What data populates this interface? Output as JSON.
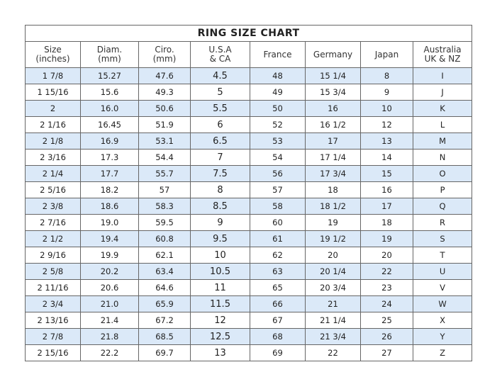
{
  "title": "RING SIZE CHART",
  "headers": [
    [
      "Size",
      "(inches)"
    ],
    [
      "Diam.",
      "(mm)"
    ],
    [
      "Ciro.",
      "(mm)"
    ],
    [
      "U.S.A",
      "& CA"
    ],
    [
      "France",
      ""
    ],
    [
      "Germany",
      ""
    ],
    [
      "Japan",
      ""
    ],
    [
      "Australia",
      "UK & NZ"
    ]
  ],
  "stripe_color": "#dbe9f8",
  "rows": [
    [
      "1 7/8",
      "15.27",
      "47.6",
      "4.5",
      "48",
      "15 1/4",
      "8",
      "I"
    ],
    [
      "1 15/16",
      "15.6",
      "49.3",
      "5",
      "49",
      "15 3/4",
      "9",
      "J"
    ],
    [
      "2",
      "16.0",
      "50.6",
      "5.5",
      "50",
      "16",
      "10",
      "K"
    ],
    [
      "2 1/16",
      "16.45",
      "51.9",
      "6",
      "52",
      "16 1/2",
      "12",
      "L"
    ],
    [
      "2 1/8",
      "16.9",
      "53.1",
      "6.5",
      "53",
      "17",
      "13",
      "M"
    ],
    [
      "2 3/16",
      "17.3",
      "54.4",
      "7",
      "54",
      "17 1/4",
      "14",
      "N"
    ],
    [
      "2 1/4",
      "17.7",
      "55.7",
      "7.5",
      "56",
      "17 3/4",
      "15",
      "O"
    ],
    [
      "2 5/16",
      "18.2",
      "57",
      "8",
      "57",
      "18",
      "16",
      "P"
    ],
    [
      "2 3/8",
      "18.6",
      "58.3",
      "8.5",
      "58",
      "18 1/2",
      "17",
      "Q"
    ],
    [
      "2 7/16",
      "19.0",
      "59.5",
      "9",
      "60",
      "19",
      "18",
      "R"
    ],
    [
      "2 1/2",
      "19.4",
      "60.8",
      "9.5",
      "61",
      "19 1/2",
      "19",
      "S"
    ],
    [
      "2 9/16",
      "19.9",
      "62.1",
      "10",
      "62",
      "20",
      "20",
      "T"
    ],
    [
      "2 5/8",
      "20.2",
      "63.4",
      "10.5",
      "63",
      "20 1/4",
      "22",
      "U"
    ],
    [
      "2 11/16",
      "20.6",
      "64.6",
      "11",
      "65",
      "20 3/4",
      "23",
      "V"
    ],
    [
      "2 3/4",
      "21.0",
      "65.9",
      "11.5",
      "66",
      "21",
      "24",
      "W"
    ],
    [
      "2 13/16",
      "21.4",
      "67.2",
      "12",
      "67",
      "21 1/4",
      "25",
      "X"
    ],
    [
      "2 7/8",
      "21.8",
      "68.5",
      "12.5",
      "68",
      "21 3/4",
      "26",
      "Y"
    ],
    [
      "2 15/16",
      "22.2",
      "69.7",
      "13",
      "69",
      "22",
      "27",
      "Z"
    ]
  ]
}
